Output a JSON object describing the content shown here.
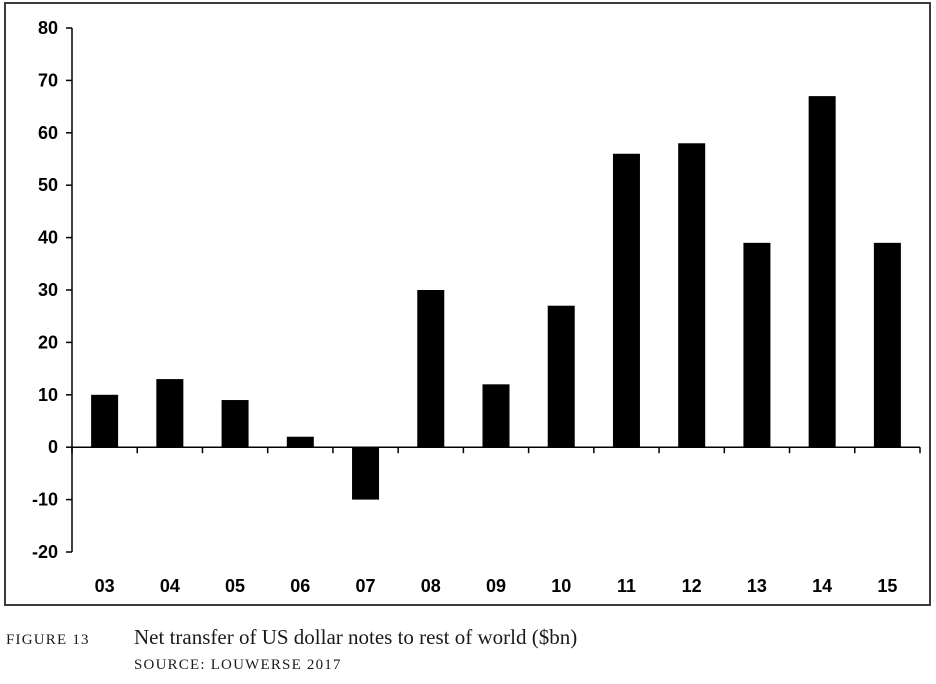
{
  "chart_data": {
    "type": "bar",
    "categories": [
      "03",
      "04",
      "05",
      "06",
      "07",
      "08",
      "09",
      "10",
      "11",
      "12",
      "13",
      "14",
      "15"
    ],
    "values": [
      10,
      13,
      9,
      2,
      -10,
      30,
      12,
      27,
      56,
      58,
      39,
      67,
      39
    ],
    "ylim": [
      -20,
      80
    ],
    "yticks": [
      80,
      70,
      60,
      50,
      40,
      30,
      20,
      10,
      0,
      -10,
      -20
    ],
    "ytick_labels": [
      "80",
      "70",
      "60",
      "50",
      "40",
      "30",
      "20",
      "10",
      "0",
      "-10",
      "-20"
    ],
    "grid": false,
    "legend": "none",
    "bar_color": "#000000"
  },
  "caption": {
    "figure_label": "FIGURE 13",
    "title": "Net transfer of US dollar notes to rest of world ($bn)",
    "source": "SOURCE: LOUWERSE 2017"
  }
}
